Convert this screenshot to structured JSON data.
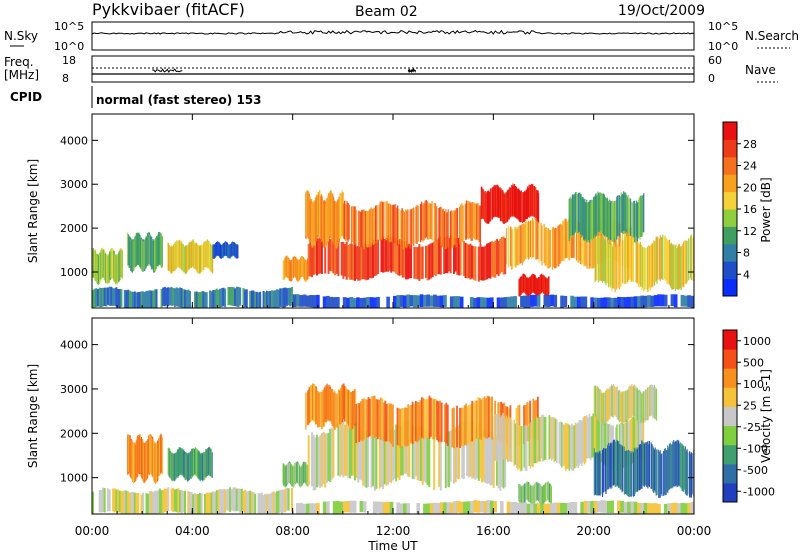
{
  "header": {
    "title": "Pykkvibaer (fitACF)",
    "beam": "Beam 02",
    "date": "19/Oct/2009"
  },
  "top_strip": {
    "left_label": "N.Sky",
    "left_ticks": [
      "10^5",
      "10^0"
    ],
    "right_ticks": [
      "10^5",
      "10^0"
    ],
    "right_label": "N.Search"
  },
  "freq_strip": {
    "left_label_1": "Freq.",
    "left_label_2": "[MHz]",
    "left_ticks": [
      "18",
      "8"
    ],
    "right_ticks": [
      "60",
      "0"
    ],
    "right_label": "Nave"
  },
  "cpid": {
    "label": "CPID",
    "text": "normal (fast stereo) 153"
  },
  "chart_data": [
    {
      "type": "heatmap",
      "panel": "power",
      "ylabel": "Slant Range [km]",
      "ylim": [
        180,
        4600
      ],
      "y_ticks": [
        1000,
        2000,
        3000,
        4000
      ],
      "xlim": [
        0,
        24
      ],
      "x_unit": "hours UT",
      "colorbar": {
        "label": "Power [dB]",
        "ticks": [
          "4",
          "8",
          "12",
          "16",
          "20",
          "24",
          "28"
        ],
        "colors": [
          "#0a2dff",
          "#1f4fc8",
          "#2f7fa6",
          "#3f9f5f",
          "#8fcf3f",
          "#f6d23a",
          "#f7a11f",
          "#f5701f",
          "#ef3a1a",
          "#e81010"
        ]
      },
      "regions": [
        {
          "t0": 0.0,
          "t1": 8.0,
          "r0": 180,
          "r1": 600,
          "level": 2
        },
        {
          "t0": 0.0,
          "t1": 1.2,
          "r0": 800,
          "r1": 1450,
          "level": 4
        },
        {
          "t0": 1.4,
          "t1": 2.8,
          "r0": 1100,
          "r1": 1800,
          "level": 3
        },
        {
          "t0": 3.0,
          "t1": 4.8,
          "r0": 1050,
          "r1": 1650,
          "level": 5
        },
        {
          "t0": 4.8,
          "t1": 5.8,
          "r0": 1350,
          "r1": 1650,
          "level": 1
        },
        {
          "t0": 7.6,
          "t1": 8.6,
          "r0": 850,
          "r1": 1300,
          "level": 6
        },
        {
          "t0": 8.6,
          "t1": 16.5,
          "r0": 900,
          "r1": 1700,
          "level": 8
        },
        {
          "t0": 8.5,
          "t1": 10.0,
          "r0": 1700,
          "r1": 2700,
          "level": 6
        },
        {
          "t0": 10.0,
          "t1": 15.5,
          "r0": 1650,
          "r1": 2500,
          "level": 7
        },
        {
          "t0": 15.5,
          "t1": 17.8,
          "r0": 2200,
          "r1": 2900,
          "level": 9
        },
        {
          "t0": 16.5,
          "t1": 21.5,
          "r0": 1200,
          "r1": 2100,
          "level": 6
        },
        {
          "t0": 17.0,
          "t1": 18.2,
          "r0": 500,
          "r1": 900,
          "level": 9
        },
        {
          "t0": 19.0,
          "t1": 22.0,
          "r0": 1800,
          "r1": 2700,
          "level": 3
        },
        {
          "t0": 20.0,
          "t1": 24.0,
          "r0": 700,
          "r1": 1700,
          "level": 5
        },
        {
          "t0": 8.0,
          "t1": 24.0,
          "r0": 180,
          "r1": 450,
          "level": 1
        }
      ]
    },
    {
      "type": "heatmap",
      "panel": "velocity",
      "ylabel": "Slant Range [km]",
      "xlabel": "Time UT",
      "ylim": [
        180,
        4600
      ],
      "y_ticks": [
        1000,
        2000,
        3000,
        4000
      ],
      "xlim": [
        0,
        24
      ],
      "x_ticks": [
        "00:00",
        "04:00",
        "08:00",
        "12:00",
        "16:00",
        "20:00",
        "00:00"
      ],
      "x_tick_hours": [
        0,
        4,
        8,
        12,
        16,
        20,
        24
      ],
      "colorbar": {
        "label": "Velocity [m s-1]",
        "ticks": [
          "1000",
          "500",
          "100",
          "25",
          "-25",
          "-100",
          "-500",
          "-1000"
        ],
        "colors": [
          "#1f3fbf",
          "#2f6fa6",
          "#3f9f6f",
          "#7fcf3f",
          "#c8c8c8",
          "#f6c23a",
          "#f7901f",
          "#f5501a",
          "#e81010"
        ]
      },
      "regions": [
        {
          "t0": 0.0,
          "t1": 8.0,
          "r0": 180,
          "r1": 700,
          "level": 4
        },
        {
          "t0": 1.4,
          "t1": 2.8,
          "r0": 1000,
          "r1": 1850,
          "level": 6
        },
        {
          "t0": 3.0,
          "t1": 4.8,
          "r0": 1000,
          "r1": 1600,
          "level": 2
        },
        {
          "t0": 7.6,
          "t1": 8.6,
          "r0": 850,
          "r1": 1300,
          "level": 3
        },
        {
          "t0": 8.6,
          "t1": 16.5,
          "r0": 900,
          "r1": 2100,
          "level": 4
        },
        {
          "t0": 8.5,
          "t1": 10.5,
          "r0": 2200,
          "r1": 3000,
          "level": 6
        },
        {
          "t0": 10.5,
          "t1": 17.8,
          "r0": 1800,
          "r1": 2700,
          "level": 6
        },
        {
          "t0": 16.0,
          "t1": 22.0,
          "r0": 1300,
          "r1": 2300,
          "level": 4
        },
        {
          "t0": 20.0,
          "t1": 22.5,
          "r0": 2300,
          "r1": 3000,
          "level": 4
        },
        {
          "t0": 17.0,
          "t1": 18.3,
          "r0": 450,
          "r1": 850,
          "level": 3
        },
        {
          "t0": 20.0,
          "t1": 24.0,
          "r0": 700,
          "r1": 1700,
          "level": 1
        },
        {
          "t0": 8.0,
          "t1": 24.0,
          "r0": 180,
          "r1": 450,
          "level": 4
        }
      ]
    }
  ]
}
